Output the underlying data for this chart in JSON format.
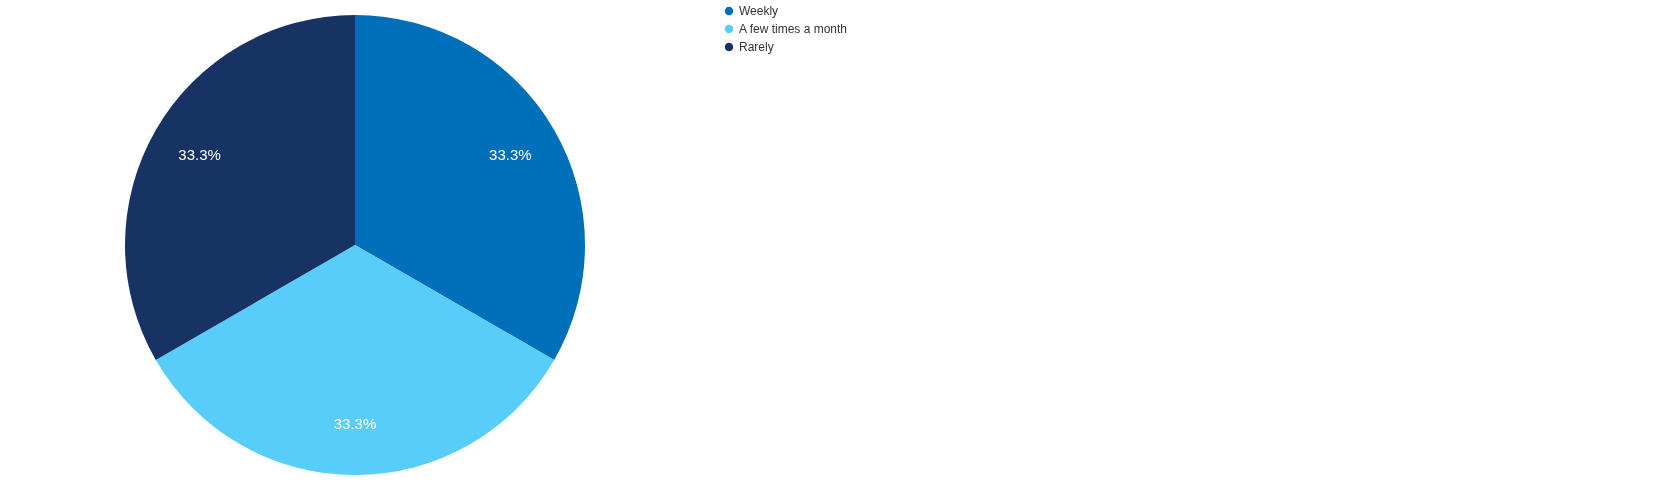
{
  "chart_data": {
    "type": "pie",
    "categories": [
      "Weekly",
      "A few times a month",
      "Rarely"
    ],
    "values": [
      33.3,
      33.3,
      33.3
    ],
    "value_labels": [
      "33.3%",
      "33.3%",
      "33.3%"
    ],
    "colors": [
      "#006fb9",
      "#59cdfa",
      "#163363"
    ],
    "legend": "top right"
  }
}
